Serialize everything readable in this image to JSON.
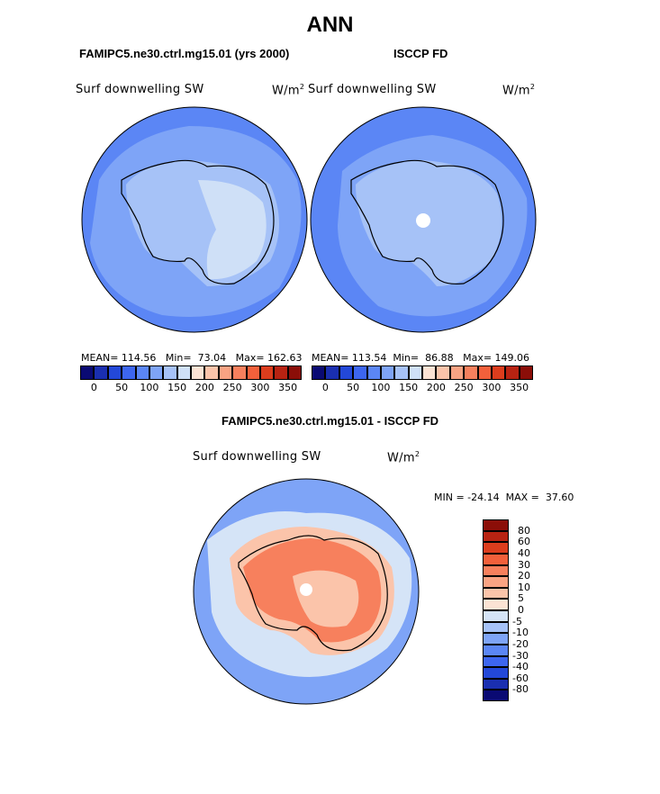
{
  "figure": {
    "season": "ANN",
    "model_title": "FAMIPC5.ne30.ctrl.mg15.01 (yrs 2000)",
    "obs_title": "ISCCP FD",
    "diff_title": "FAMIPC5.ne30.ctrl.mg15.01 - ISCCP FD"
  },
  "panels": {
    "model": {
      "variable": "Surf downwelling SW",
      "units": "W/m",
      "units_exp": "2",
      "stats": "MEAN= 114.56   Min=  73.04   Max= 162.63"
    },
    "obs": {
      "variable": "Surf downwelling SW",
      "units": "W/m",
      "units_exp": "2",
      "stats": "MEAN= 113.54  Min=  86.88   Max= 149.06"
    },
    "diff": {
      "variable": "Surf downwelling SW",
      "units": "W/m",
      "units_exp": "2",
      "minmax": "MIN = -24.14  MAX =  37.60"
    }
  },
  "colorbar_main": {
    "colors": [
      "#0a0a73",
      "#1a2fb0",
      "#2348d8",
      "#3d66ef",
      "#5b86f5",
      "#7ea4f7",
      "#a6c2f7",
      "#cfe0f7",
      "#fbe3d4",
      "#fbc4aa",
      "#f9a383",
      "#f7805d",
      "#f2603b",
      "#dc3d1d",
      "#b82312",
      "#8b0e08"
    ],
    "tick_labels": [
      "0",
      "50",
      "100",
      "150",
      "200",
      "250",
      "300",
      "350"
    ]
  },
  "colorbar_diff": {
    "colors": [
      "#8b0e08",
      "#b82312",
      "#dc3d1d",
      "#f2603b",
      "#f7805d",
      "#f9a383",
      "#fbc4aa",
      "#fbe3d4",
      "#d5e4f7",
      "#a6c2f7",
      "#7ea4f7",
      "#5b86f5",
      "#3d66ef",
      "#2348d8",
      "#1a2fb0",
      "#0a0a73"
    ],
    "tick_labels": [
      "80",
      "60",
      "40",
      "30",
      "20",
      "10",
      "5",
      "0",
      "-5",
      "-10",
      "-20",
      "-30",
      "-40",
      "-60",
      "-80"
    ]
  },
  "map_colors": {
    "ocean_model": "#5b86f5",
    "ocean_obs": "#5b86f5",
    "ring_light": "#7ea4f7",
    "land_light": "#a6c2f7",
    "land_lighter": "#cfe0f7",
    "diff_ocean": "#7ea4f7",
    "diff_ice": "#f7805d",
    "diff_ice_light": "#fbc4aa",
    "diff_ring": "#d5e4f7"
  }
}
